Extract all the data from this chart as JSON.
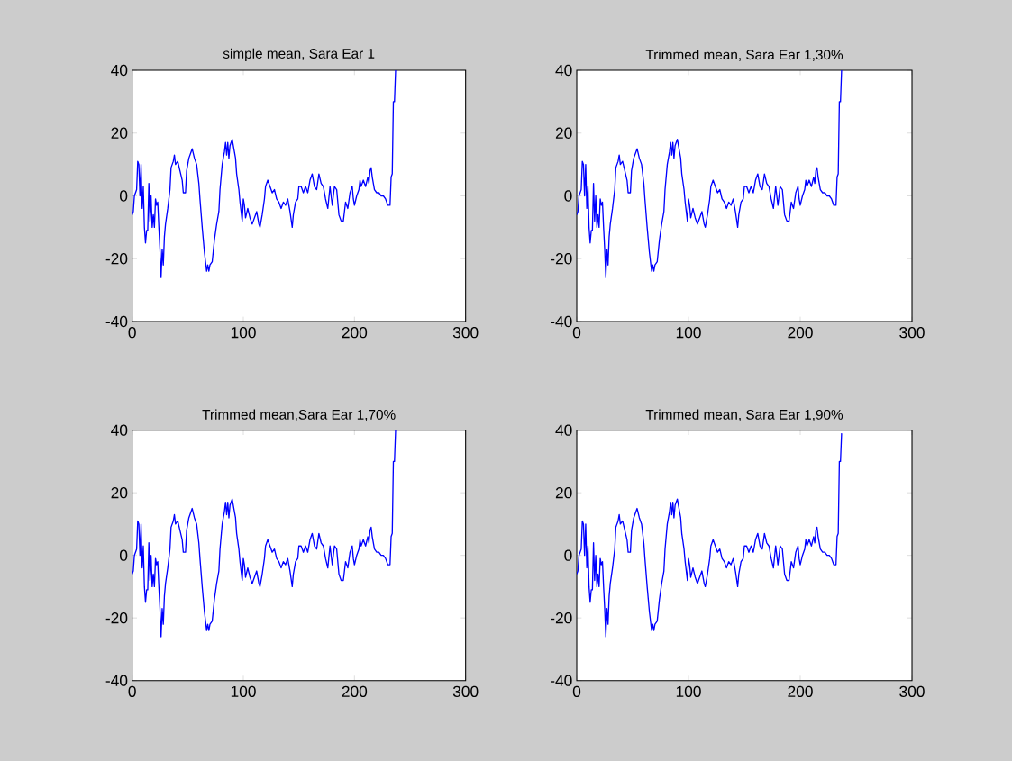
{
  "chart_data": [
    {
      "type": "line",
      "title": "simple mean, Sara Ear 1",
      "xlim": [
        0,
        300
      ],
      "ylim": [
        -40,
        40
      ],
      "xticks": [
        0,
        100,
        200,
        300
      ],
      "yticks": [
        -40,
        -20,
        0,
        20,
        40
      ],
      "grid": false,
      "x": [
        0,
        1,
        2,
        4,
        5,
        6,
        7,
        8,
        9,
        10,
        11,
        12,
        13,
        14,
        15,
        16,
        17,
        18,
        19,
        20,
        21,
        22,
        23,
        24,
        25,
        26,
        27,
        28,
        29,
        30,
        32,
        34,
        35,
        37,
        38,
        39,
        41,
        43,
        45,
        46,
        48,
        49,
        51,
        53,
        54,
        56,
        58,
        60,
        61,
        63,
        65,
        67,
        68,
        69,
        70,
        72,
        74,
        76,
        78,
        79,
        81,
        83,
        84,
        85,
        86,
        87,
        88,
        89,
        90,
        91,
        93,
        94,
        96,
        97,
        98,
        99,
        100,
        101,
        102,
        104,
        106,
        108,
        110,
        112,
        114,
        115,
        117,
        119,
        120,
        122,
        124,
        126,
        128,
        130,
        132,
        134,
        136,
        138,
        140,
        142,
        144,
        145,
        147,
        149,
        150,
        152,
        154,
        156,
        158,
        160,
        162,
        164,
        166,
        168,
        170,
        172,
        174,
        176,
        178,
        180,
        182,
        184,
        186,
        188,
        190,
        192,
        194,
        196,
        198,
        199,
        200,
        202,
        204,
        205,
        206,
        208,
        210,
        212,
        213,
        214,
        215,
        216,
        218,
        220,
        222,
        224,
        226,
        228,
        230,
        232,
        233,
        234,
        235,
        236,
        237
      ],
      "series": [
        {
          "color": "#0000ff",
          "values": [
            -6,
            -5,
            0,
            2,
            11,
            10,
            0,
            10,
            -4,
            3,
            -10,
            -15,
            -11,
            -11,
            4,
            -8,
            0,
            -10,
            -6,
            -10,
            -1,
            -3,
            -2,
            -10,
            -17,
            -26,
            -17,
            -22,
            -13,
            -9,
            -4,
            2,
            9,
            11,
            13,
            10,
            11,
            8,
            5,
            1,
            1,
            8,
            12,
            14,
            15,
            12,
            10,
            4,
            -1,
            -10,
            -18,
            -24,
            -22,
            -24,
            -22,
            -21,
            -14,
            -9,
            -5,
            2,
            10,
            14,
            17,
            13,
            17,
            12,
            16,
            17,
            18,
            16,
            12,
            7,
            2,
            -2,
            -5,
            -8,
            -1,
            -3,
            -7,
            -4,
            -7,
            -9,
            -7,
            -5,
            -9,
            -10,
            -6,
            -1,
            3,
            5,
            3,
            1,
            2,
            -1,
            -2,
            -4,
            -2,
            -3,
            -1,
            -5,
            -10,
            -6,
            -2,
            -1,
            3,
            3,
            1,
            3,
            1,
            5,
            7,
            3,
            2,
            7,
            4,
            3,
            -1,
            -4,
            3,
            -3,
            3,
            2,
            -6,
            -8,
            -8,
            -2,
            -4,
            1,
            3,
            -1,
            -3,
            0,
            2,
            5,
            3,
            5,
            3,
            6,
            4,
            8,
            9,
            6,
            2,
            1,
            1,
            0,
            0,
            -1,
            -3,
            -3,
            6,
            7,
            30,
            30,
            40
          ]
        }
      ]
    },
    {
      "type": "line",
      "title": "Trimmed mean, Sara Ear 1,30%",
      "xlim": [
        0,
        300
      ],
      "ylim": [
        -40,
        40
      ],
      "xticks": [
        0,
        100,
        200,
        300
      ],
      "yticks": [
        -40,
        -20,
        0,
        20,
        40
      ],
      "grid": false,
      "x": [
        0,
        1,
        2,
        4,
        5,
        6,
        7,
        8,
        9,
        10,
        11,
        12,
        13,
        14,
        15,
        16,
        17,
        18,
        19,
        20,
        21,
        22,
        23,
        24,
        25,
        26,
        27,
        28,
        29,
        30,
        32,
        34,
        35,
        37,
        38,
        39,
        41,
        43,
        45,
        46,
        48,
        49,
        51,
        53,
        54,
        56,
        58,
        60,
        61,
        63,
        65,
        67,
        68,
        69,
        70,
        72,
        74,
        76,
        78,
        79,
        81,
        83,
        84,
        85,
        86,
        87,
        88,
        89,
        90,
        91,
        93,
        94,
        96,
        97,
        98,
        99,
        100,
        101,
        102,
        104,
        106,
        108,
        110,
        112,
        114,
        115,
        117,
        119,
        120,
        122,
        124,
        126,
        128,
        130,
        132,
        134,
        136,
        138,
        140,
        142,
        144,
        145,
        147,
        149,
        150,
        152,
        154,
        156,
        158,
        160,
        162,
        164,
        166,
        168,
        170,
        172,
        174,
        176,
        178,
        180,
        182,
        184,
        186,
        188,
        190,
        192,
        194,
        196,
        198,
        199,
        200,
        202,
        204,
        205,
        206,
        208,
        210,
        212,
        213,
        214,
        215,
        216,
        218,
        220,
        222,
        224,
        226,
        228,
        230,
        232,
        233,
        234,
        235,
        236,
        237
      ],
      "series": [
        {
          "color": "#0000ff",
          "values": [
            -6,
            -5,
            0,
            2,
            11,
            10,
            0,
            10,
            -4,
            3,
            -10,
            -15,
            -11,
            -11,
            4,
            -8,
            0,
            -10,
            -6,
            -10,
            -1,
            -3,
            -2,
            -10,
            -17,
            -26,
            -17,
            -22,
            -13,
            -9,
            -4,
            2,
            9,
            11,
            13,
            10,
            11,
            8,
            5,
            1,
            1,
            8,
            12,
            14,
            15,
            12,
            10,
            4,
            -1,
            -10,
            -18,
            -24,
            -22,
            -24,
            -22,
            -21,
            -14,
            -9,
            -5,
            2,
            10,
            14,
            17,
            13,
            17,
            12,
            16,
            17,
            18,
            16,
            12,
            7,
            2,
            -2,
            -5,
            -8,
            -1,
            -3,
            -7,
            -4,
            -7,
            -9,
            -7,
            -5,
            -9,
            -10,
            -6,
            -1,
            3,
            5,
            3,
            1,
            2,
            -1,
            -2,
            -4,
            -2,
            -3,
            -1,
            -5,
            -10,
            -6,
            -2,
            -1,
            3,
            3,
            1,
            3,
            1,
            5,
            7,
            3,
            2,
            7,
            4,
            3,
            -1,
            -4,
            3,
            -3,
            3,
            2,
            -6,
            -8,
            -8,
            -2,
            -4,
            1,
            3,
            -1,
            -3,
            0,
            2,
            5,
            3,
            5,
            3,
            6,
            4,
            8,
            9,
            6,
            2,
            1,
            1,
            0,
            0,
            -1,
            -3,
            -3,
            6,
            7,
            30,
            30,
            40
          ]
        }
      ]
    },
    {
      "type": "line",
      "title": "Trimmed mean,Sara Ear 1,70%",
      "xlim": [
        0,
        300
      ],
      "ylim": [
        -40,
        40
      ],
      "xticks": [
        0,
        100,
        200,
        300
      ],
      "yticks": [
        -40,
        -20,
        0,
        20,
        40
      ],
      "grid": false,
      "x": [
        0,
        1,
        2,
        4,
        5,
        6,
        7,
        8,
        9,
        10,
        11,
        12,
        13,
        14,
        15,
        16,
        17,
        18,
        19,
        20,
        21,
        22,
        23,
        24,
        25,
        26,
        27,
        28,
        29,
        30,
        32,
        34,
        35,
        37,
        38,
        39,
        41,
        43,
        45,
        46,
        48,
        49,
        51,
        53,
        54,
        56,
        58,
        60,
        61,
        63,
        65,
        67,
        68,
        69,
        70,
        72,
        74,
        76,
        78,
        79,
        81,
        83,
        84,
        85,
        86,
        87,
        88,
        89,
        90,
        91,
        93,
        94,
        96,
        97,
        98,
        99,
        100,
        101,
        102,
        104,
        106,
        108,
        110,
        112,
        114,
        115,
        117,
        119,
        120,
        122,
        124,
        126,
        128,
        130,
        132,
        134,
        136,
        138,
        140,
        142,
        144,
        145,
        147,
        149,
        150,
        152,
        154,
        156,
        158,
        160,
        162,
        164,
        166,
        168,
        170,
        172,
        174,
        176,
        178,
        180,
        182,
        184,
        186,
        188,
        190,
        192,
        194,
        196,
        198,
        199,
        200,
        202,
        204,
        205,
        206,
        208,
        210,
        212,
        213,
        214,
        215,
        216,
        218,
        220,
        222,
        224,
        226,
        228,
        230,
        232,
        233,
        234,
        235,
        236,
        237
      ],
      "series": [
        {
          "color": "#0000ff",
          "values": [
            -6,
            -5,
            0,
            2,
            11,
            10,
            0,
            10,
            -4,
            3,
            -10,
            -15,
            -11,
            -11,
            4,
            -8,
            0,
            -10,
            -6,
            -10,
            -1,
            -3,
            -2,
            -10,
            -17,
            -26,
            -17,
            -22,
            -13,
            -9,
            -4,
            2,
            9,
            11,
            13,
            10,
            11,
            8,
            5,
            1,
            1,
            8,
            12,
            14,
            15,
            12,
            10,
            4,
            -1,
            -10,
            -18,
            -24,
            -22,
            -24,
            -22,
            -21,
            -14,
            -9,
            -5,
            2,
            10,
            14,
            17,
            13,
            17,
            12,
            16,
            17,
            18,
            16,
            12,
            7,
            2,
            -2,
            -5,
            -8,
            -1,
            -3,
            -7,
            -4,
            -7,
            -9,
            -7,
            -5,
            -9,
            -10,
            -6,
            -1,
            3,
            5,
            3,
            1,
            2,
            -1,
            -2,
            -4,
            -2,
            -3,
            -1,
            -5,
            -10,
            -6,
            -2,
            -1,
            3,
            3,
            1,
            3,
            1,
            5,
            7,
            3,
            2,
            7,
            4,
            3,
            -1,
            -4,
            3,
            -3,
            3,
            2,
            -6,
            -8,
            -8,
            -2,
            -4,
            1,
            3,
            -1,
            -3,
            0,
            2,
            5,
            3,
            5,
            3,
            6,
            4,
            8,
            9,
            6,
            2,
            1,
            1,
            0,
            0,
            -1,
            -3,
            -3,
            6,
            7,
            30,
            30,
            40
          ]
        }
      ]
    },
    {
      "type": "line",
      "title": "Trimmed mean, Sara Ear 1,90%",
      "xlim": [
        0,
        300
      ],
      "ylim": [
        -40,
        40
      ],
      "xticks": [
        0,
        100,
        200,
        300
      ],
      "yticks": [
        -40,
        -20,
        0,
        20,
        40
      ],
      "grid": false,
      "x": [
        0,
        1,
        2,
        4,
        5,
        6,
        7,
        8,
        9,
        10,
        11,
        12,
        13,
        14,
        15,
        16,
        17,
        18,
        19,
        20,
        21,
        22,
        23,
        24,
        25,
        26,
        27,
        28,
        29,
        30,
        32,
        34,
        35,
        37,
        38,
        39,
        41,
        43,
        45,
        46,
        48,
        49,
        51,
        53,
        54,
        56,
        58,
        60,
        61,
        63,
        65,
        67,
        68,
        69,
        70,
        72,
        74,
        76,
        78,
        79,
        81,
        83,
        84,
        85,
        86,
        87,
        88,
        89,
        90,
        91,
        93,
        94,
        96,
        97,
        98,
        99,
        100,
        101,
        102,
        104,
        106,
        108,
        110,
        112,
        114,
        115,
        117,
        119,
        120,
        122,
        124,
        126,
        128,
        130,
        132,
        134,
        136,
        138,
        140,
        142,
        144,
        145,
        147,
        149,
        150,
        152,
        154,
        156,
        158,
        160,
        162,
        164,
        166,
        168,
        170,
        172,
        174,
        176,
        178,
        180,
        182,
        184,
        186,
        188,
        190,
        192,
        194,
        196,
        198,
        199,
        200,
        202,
        204,
        205,
        206,
        208,
        210,
        212,
        213,
        214,
        215,
        216,
        218,
        220,
        222,
        224,
        226,
        228,
        230,
        232,
        233,
        234,
        235,
        236,
        237
      ],
      "series": [
        {
          "color": "#0000ff",
          "values": [
            -6,
            -5,
            0,
            2,
            11,
            10,
            0,
            10,
            -4,
            3,
            -10,
            -15,
            -11,
            -11,
            4,
            -8,
            0,
            -10,
            -6,
            -10,
            -1,
            -3,
            -2,
            -10,
            -17,
            -26,
            -17,
            -22,
            -13,
            -9,
            -4,
            2,
            9,
            11,
            13,
            10,
            11,
            8,
            5,
            1,
            1,
            8,
            12,
            14,
            15,
            12,
            10,
            4,
            -1,
            -10,
            -18,
            -24,
            -22,
            -24,
            -22,
            -21,
            -14,
            -9,
            -5,
            2,
            10,
            14,
            17,
            13,
            17,
            12,
            16,
            17,
            18,
            16,
            12,
            7,
            2,
            -2,
            -5,
            -8,
            -1,
            -3,
            -7,
            -4,
            -7,
            -9,
            -7,
            -5,
            -9,
            -10,
            -6,
            -1,
            3,
            5,
            3,
            1,
            2,
            -1,
            -2,
            -4,
            -2,
            -3,
            -1,
            -5,
            -10,
            -6,
            -2,
            -1,
            3,
            3,
            1,
            3,
            1,
            5,
            7,
            3,
            2,
            7,
            4,
            3,
            -1,
            -4,
            3,
            -3,
            3,
            2,
            -6,
            -8,
            -8,
            -2,
            -4,
            1,
            3,
            -1,
            -3,
            0,
            2,
            5,
            3,
            5,
            3,
            6,
            4,
            8,
            9,
            6,
            2,
            1,
            1,
            0,
            0,
            -1,
            -3,
            -3,
            6,
            7,
            30,
            30,
            39
          ]
        }
      ]
    }
  ]
}
